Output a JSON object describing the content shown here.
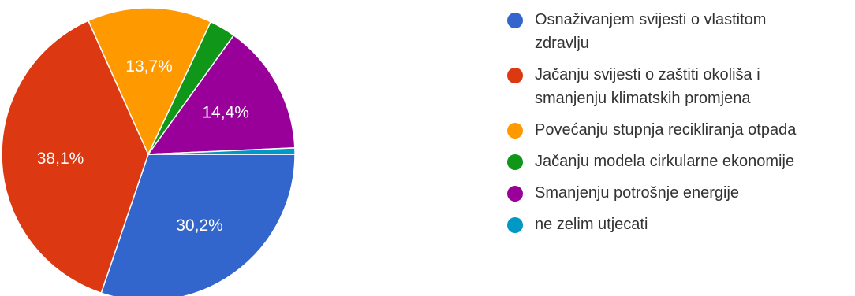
{
  "chart_data": {
    "type": "pie",
    "slices": [
      {
        "label": "Osnaživanjem svijesti o vlastitom zdravlju",
        "value": 30.2,
        "display": "30,2%",
        "color": "#3366cc"
      },
      {
        "label": "Jačanju svijesti o zaštiti okoliša i smanjenju klimatskih promjena",
        "value": 38.1,
        "display": "38,1%",
        "color": "#dc3912"
      },
      {
        "label": "Povećanju stupnja recikliranja otpada",
        "value": 13.7,
        "display": "13,7%",
        "color": "#ff9900"
      },
      {
        "label": "Jačanju modela cirkularne ekonomije",
        "value": 2.9,
        "display": "",
        "color": "#109618"
      },
      {
        "label": "Smanjenju potrošnje energije",
        "value": 14.4,
        "display": "14,4%",
        "color": "#990099"
      },
      {
        "label": "ne zelim utjecati",
        "value": 0.7,
        "display": "",
        "color": "#0099c6"
      }
    ],
    "legend_position": "right"
  },
  "legend": [
    {
      "line1": "Osnaživanjem svijesti o vlastitom",
      "line2": "zdravlju",
      "color": "#3366cc"
    },
    {
      "line1": "Jačanju svijesti o zaštiti okoliša i",
      "line2": "smanjenju klimatskih promjena",
      "color": "#dc3912"
    },
    {
      "line1": "Povećanju stupnja recikliranja otpada",
      "line2": "",
      "color": "#ff9900"
    },
    {
      "line1": "Jačanju modela cirkularne ekonomije",
      "line2": "",
      "color": "#109618"
    },
    {
      "line1": "Smanjenju potrošnje energije",
      "line2": "",
      "color": "#990099"
    },
    {
      "line1": "ne zelim utjecati",
      "line2": "",
      "color": "#0099c6"
    }
  ]
}
